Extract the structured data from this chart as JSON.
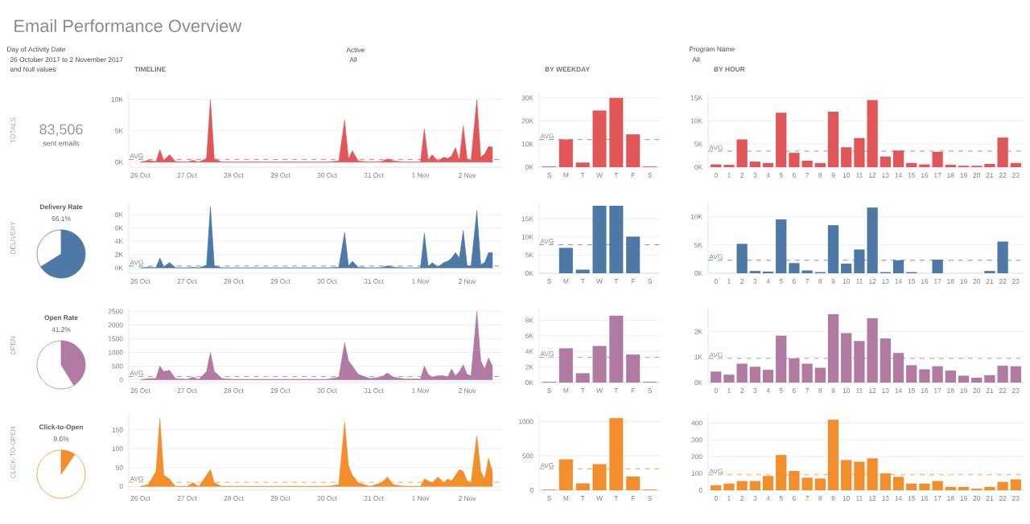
{
  "chart_data": [
    {
      "type": "other",
      "title": "Email Performance Overview",
      "annotations": [
        "Day of Activity Date",
        "26 October 2017 to 2 November 2017",
        "and Null values",
        "Active",
        "All",
        "Program Name",
        "All"
      ]
    },
    {
      "type": "other",
      "ylabel": "TOTALS",
      "title": "83,506",
      "subtitle": "sent emails"
    },
    {
      "type": "area",
      "title": "TIMELINE",
      "color": "#e15759",
      "grid": "y",
      "x": [
        "2017-10-26T00:00",
        "2017-10-26T04:00",
        "2017-10-26T08:00",
        "2017-10-26T10:00",
        "2017-10-26T12:00",
        "2017-10-26T15:00",
        "2017-10-26T18:00",
        "2017-10-27T00:00",
        "2017-10-27T03:00",
        "2017-10-27T06:00",
        "2017-10-27T10:00",
        "2017-10-27T12:00",
        "2017-10-27T14:00",
        "2017-10-27T18:00",
        "2017-10-28T00:00",
        "2017-10-28T12:00",
        "2017-10-29T00:00",
        "2017-10-29T12:00",
        "2017-10-30T00:00",
        "2017-10-30T06:00",
        "2017-10-30T09:00",
        "2017-10-30T11:00",
        "2017-10-30T13:00",
        "2017-10-30T16:00",
        "2017-10-30T22:00",
        "2017-10-31T04:00",
        "2017-10-31T07:00",
        "2017-10-31T10:00",
        "2017-10-31T16:00",
        "2017-11-01T00:00",
        "2017-11-01T02:00",
        "2017-11-01T04:00",
        "2017-11-01T06:00",
        "2017-11-01T09:00",
        "2017-11-01T12:00",
        "2017-11-01T14:00",
        "2017-11-01T16:00",
        "2017-11-01T18:00",
        "2017-11-01T20:00",
        "2017-11-01T22:00",
        "2017-11-02T00:00",
        "2017-11-02T02:00",
        "2017-11-02T05:00",
        "2017-11-02T07:00",
        "2017-11-02T09:00",
        "2017-11-02T11:00",
        "2017-11-02T13:00"
      ],
      "values": [
        0,
        300,
        100,
        2000,
        300,
        1200,
        100,
        0,
        300,
        0,
        600,
        10000,
        500,
        0,
        0,
        0,
        0,
        0,
        0,
        200,
        6700,
        500,
        1800,
        200,
        0,
        100,
        500,
        200,
        0,
        0,
        5300,
        300,
        1200,
        200,
        800,
        600,
        1000,
        2300,
        300,
        5800,
        500,
        300,
        10000,
        800,
        1300,
        2500,
        2400
      ],
      "xlim": [
        "2017-10-25T18:00",
        "2017-11-02T18:00"
      ],
      "xticks": [
        {
          "value": "2017-10-26",
          "label": "26 Oct"
        },
        {
          "value": "2017-10-27",
          "label": "27 Oct"
        },
        {
          "value": "2017-10-28",
          "label": "28 Oct"
        },
        {
          "value": "2017-10-29",
          "label": "29 Oct"
        },
        {
          "value": "2017-10-30",
          "label": "30 Oct"
        },
        {
          "value": "2017-10-31",
          "label": "31 Oct"
        },
        {
          "value": "2017-11-01",
          "label": "1 Nov"
        },
        {
          "value": "2017-11-02",
          "label": "2 Nov"
        }
      ],
      "ylim": [
        -800,
        11000
      ],
      "yticks": [
        {
          "value": 0,
          "label": "0K"
        },
        {
          "value": 5000,
          "label": "5K"
        },
        {
          "value": 10000,
          "label": "10K"
        }
      ],
      "ref_lines": [
        {
          "axis": "y",
          "value": 435,
          "label": "AVG",
          "line_style": "dashed"
        }
      ]
    },
    {
      "type": "bar",
      "title": "BY WEEKDAY",
      "color": "#e15759",
      "grid": "y",
      "categories": [
        "S",
        "M",
        "T",
        "W",
        "T",
        "F",
        "S"
      ],
      "values": [
        300,
        12000,
        2000,
        24500,
        30000,
        14200,
        300
      ],
      "ylim": [
        0,
        32000
      ],
      "yticks": [
        {
          "value": 0,
          "label": "0K"
        },
        {
          "value": 10000,
          "label": "10K"
        },
        {
          "value": 20000,
          "label": "20K"
        },
        {
          "value": 30000,
          "label": "30K"
        }
      ],
      "ref_lines": [
        {
          "axis": "y",
          "value": 11929,
          "label": "AVG",
          "line_style": "dashed"
        }
      ]
    },
    {
      "type": "bar",
      "title": "BY HOUR",
      "color": "#e15759",
      "grid": "y",
      "categories": [
        "0",
        "1",
        "2",
        "3",
        "4",
        "5",
        "6",
        "7",
        "8",
        "9",
        "10",
        "11",
        "12",
        "13",
        "14",
        "15",
        "16",
        "17",
        "18",
        "19",
        "20",
        "21",
        "22",
        "23"
      ],
      "values": [
        600,
        500,
        6000,
        1200,
        900,
        11800,
        3100,
        1400,
        900,
        12000,
        4300,
        6300,
        14500,
        2300,
        3600,
        900,
        600,
        3300,
        500,
        300,
        300,
        700,
        6400,
        900
      ],
      "ylim": [
        0,
        16000
      ],
      "yticks": [
        {
          "value": 0,
          "label": "0K"
        },
        {
          "value": 5000,
          "label": "5K"
        },
        {
          "value": 10000,
          "label": "10K"
        },
        {
          "value": 15000,
          "label": "15K"
        }
      ],
      "ref_lines": [
        {
          "axis": "y",
          "value": 3479,
          "label": "AVG",
          "line_style": "dashed"
        }
      ]
    },
    {
      "type": "pie",
      "ylabel": "DELIVERY",
      "title": "Delivery Rate",
      "subtitle": "66.1%",
      "categories": [
        null,
        null
      ],
      "values": [
        66.1,
        33.9
      ],
      "colors": [
        "#4e79a7",
        "#ffffff"
      ]
    },
    {
      "type": "area",
      "color": "#4e79a7",
      "grid": "y",
      "x": [
        "2017-10-26T00:00",
        "2017-10-26T04:00",
        "2017-10-26T08:00",
        "2017-10-26T10:00",
        "2017-10-26T12:00",
        "2017-10-26T15:00",
        "2017-10-26T18:00",
        "2017-10-27T00:00",
        "2017-10-27T03:00",
        "2017-10-27T06:00",
        "2017-10-27T10:00",
        "2017-10-27T12:00",
        "2017-10-27T14:00",
        "2017-10-27T18:00",
        "2017-10-28T00:00",
        "2017-10-28T12:00",
        "2017-10-29T00:00",
        "2017-10-29T12:00",
        "2017-10-30T00:00",
        "2017-10-30T06:00",
        "2017-10-30T09:00",
        "2017-10-30T11:00",
        "2017-10-30T13:00",
        "2017-10-30T16:00",
        "2017-10-30T22:00",
        "2017-10-31T04:00",
        "2017-10-31T07:00",
        "2017-10-31T10:00",
        "2017-10-31T16:00",
        "2017-11-01T00:00",
        "2017-11-01T02:00",
        "2017-11-01T04:00",
        "2017-11-01T06:00",
        "2017-11-01T09:00",
        "2017-11-01T12:00",
        "2017-11-01T14:00",
        "2017-11-01T16:00",
        "2017-11-01T18:00",
        "2017-11-01T20:00",
        "2017-11-01T22:00",
        "2017-11-02T00:00",
        "2017-11-02T02:00",
        "2017-11-02T05:00",
        "2017-11-02T07:00",
        "2017-11-02T09:00",
        "2017-11-02T11:00",
        "2017-11-02T13:00"
      ],
      "values": [
        0,
        100,
        50,
        1500,
        200,
        800,
        50,
        0,
        100,
        0,
        400,
        9200,
        300,
        0,
        0,
        0,
        0,
        0,
        0,
        100,
        5300,
        300,
        1000,
        100,
        0,
        50,
        300,
        100,
        0,
        0,
        5200,
        200,
        800,
        150,
        800,
        1000,
        1500,
        2300,
        1500,
        5600,
        300,
        300,
        8600,
        500,
        800,
        2300,
        2300
      ],
      "xlim": [
        "2017-10-25T18:00",
        "2017-11-02T18:00"
      ],
      "xticks": [
        {
          "value": "2017-10-26",
          "label": "26 Oct"
        },
        {
          "value": "2017-10-27",
          "label": "27 Oct"
        },
        {
          "value": "2017-10-28",
          "label": "28 Oct"
        },
        {
          "value": "2017-10-29",
          "label": "29 Oct"
        },
        {
          "value": "2017-10-30",
          "label": "30 Oct"
        },
        {
          "value": "2017-10-31",
          "label": "31 Oct"
        },
        {
          "value": "2017-11-01",
          "label": "1 Nov"
        },
        {
          "value": "2017-11-02",
          "label": "2 Nov"
        }
      ],
      "ylim": [
        -800,
        9800
      ],
      "yticks": [
        {
          "value": 0,
          "label": "0K"
        },
        {
          "value": 2000,
          "label": "2K"
        },
        {
          "value": 4000,
          "label": "4K"
        },
        {
          "value": 6000,
          "label": "6K"
        },
        {
          "value": 8000,
          "label": "8K"
        }
      ],
      "ref_lines": [
        {
          "axis": "y",
          "value": 287,
          "label": "AVG",
          "line_style": "dashed"
        }
      ]
    },
    {
      "type": "bar",
      "color": "#4e79a7",
      "grid": "y",
      "categories": [
        "S",
        "M",
        "T",
        "W",
        "T",
        "F",
        "S"
      ],
      "values": [
        0,
        7000,
        1000,
        18600,
        18600,
        10100,
        0
      ],
      "ylim": [
        0,
        19500
      ],
      "yticks": [
        {
          "value": 0,
          "label": "0K"
        },
        {
          "value": 5000,
          "label": "5K"
        },
        {
          "value": 10000,
          "label": "10K"
        },
        {
          "value": 15000,
          "label": "15K"
        }
      ],
      "ref_lines": [
        {
          "axis": "y",
          "value": 7886,
          "label": "AVG",
          "line_style": "dashed"
        }
      ]
    },
    {
      "type": "bar",
      "color": "#4e79a7",
      "grid": "y",
      "categories": [
        "0",
        "1",
        "2",
        "3",
        "4",
        "5",
        "6",
        "7",
        "8",
        "9",
        "10",
        "11",
        "12",
        "13",
        "14",
        "15",
        "16",
        "17",
        "18",
        "19",
        "20",
        "21",
        "22",
        "23"
      ],
      "values": [
        0,
        0,
        5200,
        400,
        300,
        9500,
        1800,
        500,
        200,
        8500,
        1700,
        4200,
        11600,
        200,
        2300,
        200,
        0,
        2400,
        0,
        0,
        0,
        400,
        5600,
        0
      ],
      "ylim": [
        0,
        12500
      ],
      "yticks": [
        {
          "value": 0,
          "label": "0K"
        },
        {
          "value": 5000,
          "label": "5K"
        },
        {
          "value": 10000,
          "label": "10K"
        }
      ],
      "ref_lines": [
        {
          "axis": "y",
          "value": 2300,
          "label": "AVG",
          "line_style": "dashed"
        }
      ]
    },
    {
      "type": "pie",
      "ylabel": "OPEN",
      "title": "Open Rate",
      "subtitle": "41.2%",
      "categories": [
        null,
        null
      ],
      "values": [
        41.2,
        58.8
      ],
      "colors": [
        "#b07aa1",
        "#ffffff"
      ]
    },
    {
      "type": "area",
      "color": "#b07aa1",
      "grid": "y",
      "x": [
        "2017-10-26T00:00",
        "2017-10-26T04:00",
        "2017-10-26T08:00",
        "2017-10-26T10:00",
        "2017-10-26T12:00",
        "2017-10-26T15:00",
        "2017-10-26T18:00",
        "2017-10-27T00:00",
        "2017-10-27T03:00",
        "2017-10-27T06:00",
        "2017-10-27T10:00",
        "2017-10-27T12:00",
        "2017-10-27T14:00",
        "2017-10-27T18:00",
        "2017-10-28T00:00",
        "2017-10-28T12:00",
        "2017-10-29T00:00",
        "2017-10-29T12:00",
        "2017-10-30T00:00",
        "2017-10-30T06:00",
        "2017-10-30T09:00",
        "2017-10-30T11:00",
        "2017-10-30T13:00",
        "2017-10-30T16:00",
        "2017-10-30T22:00",
        "2017-10-31T04:00",
        "2017-10-31T07:00",
        "2017-10-31T10:00",
        "2017-10-31T16:00",
        "2017-11-01T00:00",
        "2017-11-01T02:00",
        "2017-11-01T04:00",
        "2017-11-01T06:00",
        "2017-11-01T09:00",
        "2017-11-01T12:00",
        "2017-11-01T14:00",
        "2017-11-01T16:00",
        "2017-11-01T18:00",
        "2017-11-01T20:00",
        "2017-11-01T22:00",
        "2017-11-02T00:00",
        "2017-11-02T02:00",
        "2017-11-02T05:00",
        "2017-11-02T07:00",
        "2017-11-02T09:00",
        "2017-11-02T11:00",
        "2017-11-02T13:00"
      ],
      "values": [
        0,
        50,
        50,
        500,
        300,
        350,
        50,
        20,
        100,
        20,
        300,
        1000,
        300,
        50,
        20,
        20,
        20,
        20,
        20,
        100,
        1350,
        700,
        500,
        200,
        50,
        100,
        250,
        100,
        30,
        30,
        500,
        200,
        100,
        150,
        150,
        100,
        400,
        150,
        300,
        550,
        200,
        150,
        2500,
        700,
        400,
        800,
        500
      ],
      "xlim": [
        "2017-10-25T18:00",
        "2017-11-02T18:00"
      ],
      "xticks": [
        {
          "value": "2017-10-26",
          "label": "26 Oct"
        },
        {
          "value": "2017-10-27",
          "label": "27 Oct"
        },
        {
          "value": "2017-10-28",
          "label": "28 Oct"
        },
        {
          "value": "2017-10-29",
          "label": "29 Oct"
        },
        {
          "value": "2017-10-30",
          "label": "30 Oct"
        },
        {
          "value": "2017-10-31",
          "label": "31 Oct"
        },
        {
          "value": "2017-11-01",
          "label": "1 Nov"
        },
        {
          "value": "2017-11-02",
          "label": "2 Nov"
        }
      ],
      "ylim": [
        -100,
        2600
      ],
      "yticks": [
        0,
        500,
        1000,
        1500,
        2000,
        2500
      ],
      "ref_lines": [
        {
          "axis": "y",
          "value": 118,
          "label": "AVG",
          "line_style": "dashed"
        }
      ]
    },
    {
      "type": "bar",
      "color": "#b07aa1",
      "grid": "y",
      "categories": [
        "S",
        "M",
        "T",
        "W",
        "T",
        "F",
        "S"
      ],
      "values": [
        100,
        4400,
        1200,
        4700,
        8600,
        3600,
        100
      ],
      "ylim": [
        0,
        9500
      ],
      "yticks": [
        {
          "value": 0,
          "label": "0K"
        },
        {
          "value": 2000,
          "label": "2K"
        },
        {
          "value": 4000,
          "label": "4K"
        },
        {
          "value": 6000,
          "label": "6K"
        },
        {
          "value": 8000,
          "label": "8K"
        }
      ],
      "ref_lines": [
        {
          "axis": "y",
          "value": 3243,
          "label": "AVG",
          "line_style": "dashed"
        }
      ]
    },
    {
      "type": "bar",
      "color": "#b07aa1",
      "grid": "y",
      "categories": [
        "0",
        "1",
        "2",
        "3",
        "4",
        "5",
        "6",
        "7",
        "8",
        "9",
        "10",
        "11",
        "12",
        "13",
        "14",
        "15",
        "16",
        "17",
        "18",
        "19",
        "20",
        "21",
        "22",
        "23"
      ],
      "values": [
        430,
        310,
        740,
        620,
        500,
        1840,
        950,
        740,
        580,
        2680,
        1940,
        1630,
        2520,
        1730,
        1160,
        680,
        520,
        640,
        470,
        270,
        190,
        290,
        660,
        640
      ],
      "ylim": [
        0,
        2900
      ],
      "yticks": [
        {
          "value": 0,
          "label": "0K"
        },
        {
          "value": 1000,
          "label": "1K"
        },
        {
          "value": 2000,
          "label": "2K"
        }
      ],
      "ref_lines": [
        {
          "axis": "y",
          "value": 946,
          "label": "AVG",
          "line_style": "dashed"
        }
      ]
    },
    {
      "type": "pie",
      "ylabel": "CLICK-TO-OPEN",
      "title": "Click-to-Open",
      "subtitle": "9.6%",
      "categories": [
        null,
        null
      ],
      "values": [
        9.6,
        90.4
      ],
      "colors": [
        "#f28e2b",
        "#ffffff"
      ]
    },
    {
      "type": "area",
      "color": "#f28e2b",
      "grid": "y",
      "x": [
        "2017-10-26T00:00",
        "2017-10-26T04:00",
        "2017-10-26T08:00",
        "2017-10-26T10:00",
        "2017-10-26T12:00",
        "2017-10-26T15:00",
        "2017-10-26T18:00",
        "2017-10-27T00:00",
        "2017-10-27T03:00",
        "2017-10-27T06:00",
        "2017-10-27T10:00",
        "2017-10-27T12:00",
        "2017-10-27T14:00",
        "2017-10-27T18:00",
        "2017-10-28T00:00",
        "2017-10-28T12:00",
        "2017-10-29T00:00",
        "2017-10-29T12:00",
        "2017-10-30T00:00",
        "2017-10-30T06:00",
        "2017-10-30T09:00",
        "2017-10-30T11:00",
        "2017-10-30T13:00",
        "2017-10-30T16:00",
        "2017-10-30T22:00",
        "2017-10-31T04:00",
        "2017-10-31T07:00",
        "2017-10-31T10:00",
        "2017-10-31T16:00",
        "2017-11-01T00:00",
        "2017-11-01T02:00",
        "2017-11-01T04:00",
        "2017-11-01T06:00",
        "2017-11-01T09:00",
        "2017-11-01T12:00",
        "2017-11-01T14:00",
        "2017-11-01T16:00",
        "2017-11-01T18:00",
        "2017-11-01T20:00",
        "2017-11-01T22:00",
        "2017-11-02T00:00",
        "2017-11-02T02:00",
        "2017-11-02T05:00",
        "2017-11-02T07:00",
        "2017-11-02T09:00",
        "2017-11-02T11:00",
        "2017-11-02T13:00"
      ],
      "values": [
        0,
        5,
        40,
        180,
        30,
        20,
        0,
        0,
        10,
        0,
        30,
        45,
        10,
        0,
        0,
        0,
        0,
        0,
        0,
        5,
        170,
        55,
        30,
        10,
        0,
        10,
        25,
        5,
        0,
        0,
        20,
        15,
        10,
        25,
        10,
        20,
        15,
        30,
        45,
        40,
        15,
        10,
        135,
        40,
        20,
        75,
        40
      ],
      "xlim": [
        "2017-10-25T18:00",
        "2017-11-02T18:00"
      ],
      "xticks": [
        {
          "value": "2017-10-26",
          "label": "26 Oct"
        },
        {
          "value": "2017-10-27",
          "label": "27 Oct"
        },
        {
          "value": "2017-10-28",
          "label": "28 Oct"
        },
        {
          "value": "2017-10-29",
          "label": "29 Oct"
        },
        {
          "value": "2017-10-30",
          "label": "30 Oct"
        },
        {
          "value": "2017-10-31",
          "label": "31 Oct"
        },
        {
          "value": "2017-11-01",
          "label": "1 Nov"
        },
        {
          "value": "2017-11-02",
          "label": "2 Nov"
        }
      ],
      "ylim": [
        -10,
        190
      ],
      "yticks": [
        0,
        50,
        100,
        150
      ],
      "ref_lines": [
        {
          "axis": "y",
          "value": 11,
          "label": "AVG",
          "line_style": "dashed"
        }
      ]
    },
    {
      "type": "bar",
      "color": "#f28e2b",
      "grid": "y",
      "categories": [
        "S",
        "M",
        "T",
        "W",
        "T",
        "F",
        "S"
      ],
      "values": [
        10,
        450,
        100,
        380,
        1050,
        200,
        10
      ],
      "ylim": [
        0,
        1100
      ],
      "yticks": [
        0,
        500,
        1000
      ],
      "ref_lines": [
        {
          "axis": "y",
          "value": 311,
          "label": "AVG",
          "line_style": "dashed"
        }
      ]
    },
    {
      "type": "bar",
      "color": "#f28e2b",
      "grid": "y",
      "categories": [
        "0",
        "1",
        "2",
        "3",
        "4",
        "5",
        "6",
        "7",
        "8",
        "9",
        "10",
        "11",
        "12",
        "13",
        "14",
        "15",
        "16",
        "17",
        "18",
        "19",
        "20",
        "21",
        "22",
        "23"
      ],
      "values": [
        30,
        40,
        55,
        55,
        85,
        210,
        115,
        75,
        70,
        420,
        180,
        170,
        190,
        100,
        80,
        40,
        40,
        55,
        20,
        20,
        10,
        20,
        50,
        65
      ],
      "ylim": [
        0,
        450
      ],
      "yticks": [
        0,
        100,
        200,
        300,
        400
      ],
      "ref_lines": [
        {
          "axis": "y",
          "value": 92,
          "label": "AVG",
          "line_style": "dashed"
        }
      ]
    }
  ]
}
